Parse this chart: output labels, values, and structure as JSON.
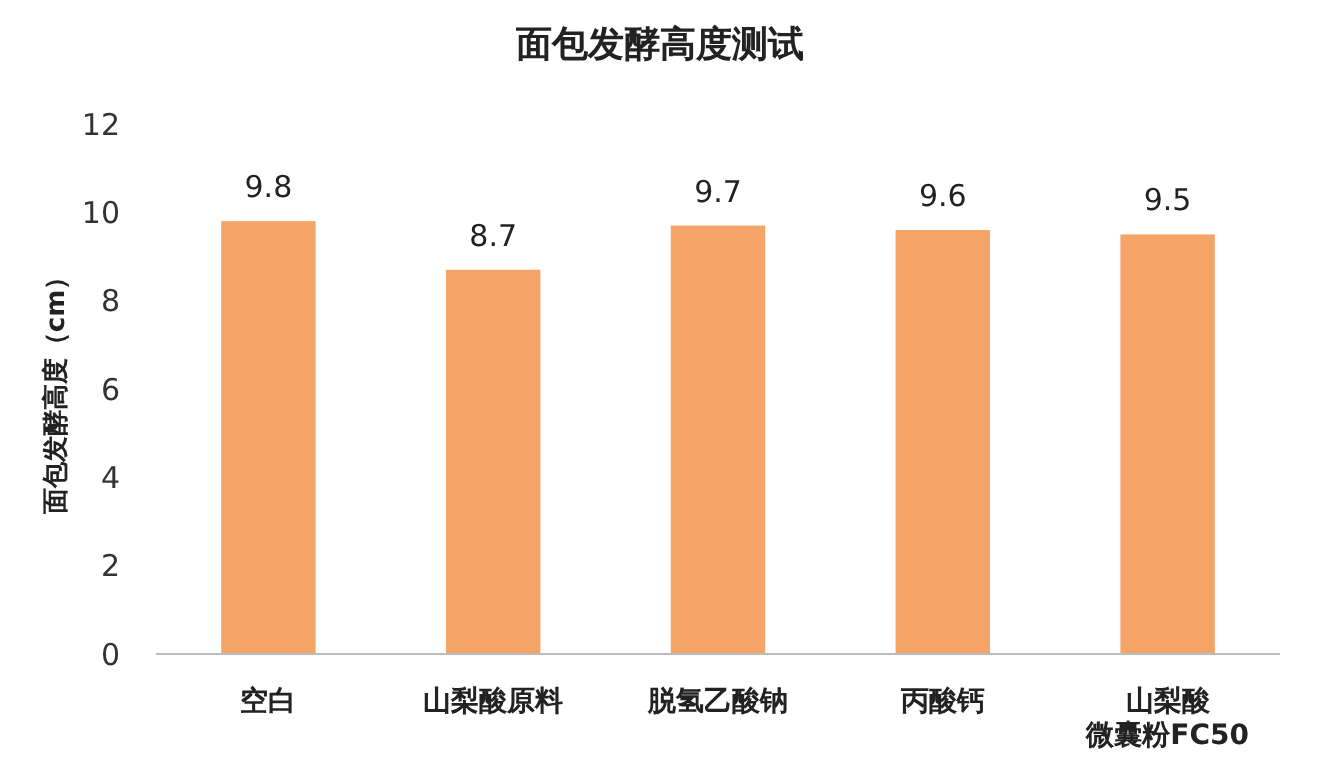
{
  "chart_data": {
    "type": "bar",
    "title": "面包发酵高度测试",
    "ylabel": "面包发酵高度（cm）",
    "categories": [
      "空白",
      "山梨酸原料",
      "脱氢乙酸钠",
      "丙酸钙",
      "山梨酸微囊粉FC50"
    ],
    "values": [
      9.8,
      8.7,
      9.7,
      9.6,
      9.5
    ],
    "color": "#f5a468",
    "ylim": [
      0,
      12
    ],
    "yticks": [
      0,
      2,
      4,
      6,
      8,
      10,
      12
    ],
    "grid": false,
    "data_labels": true
  }
}
